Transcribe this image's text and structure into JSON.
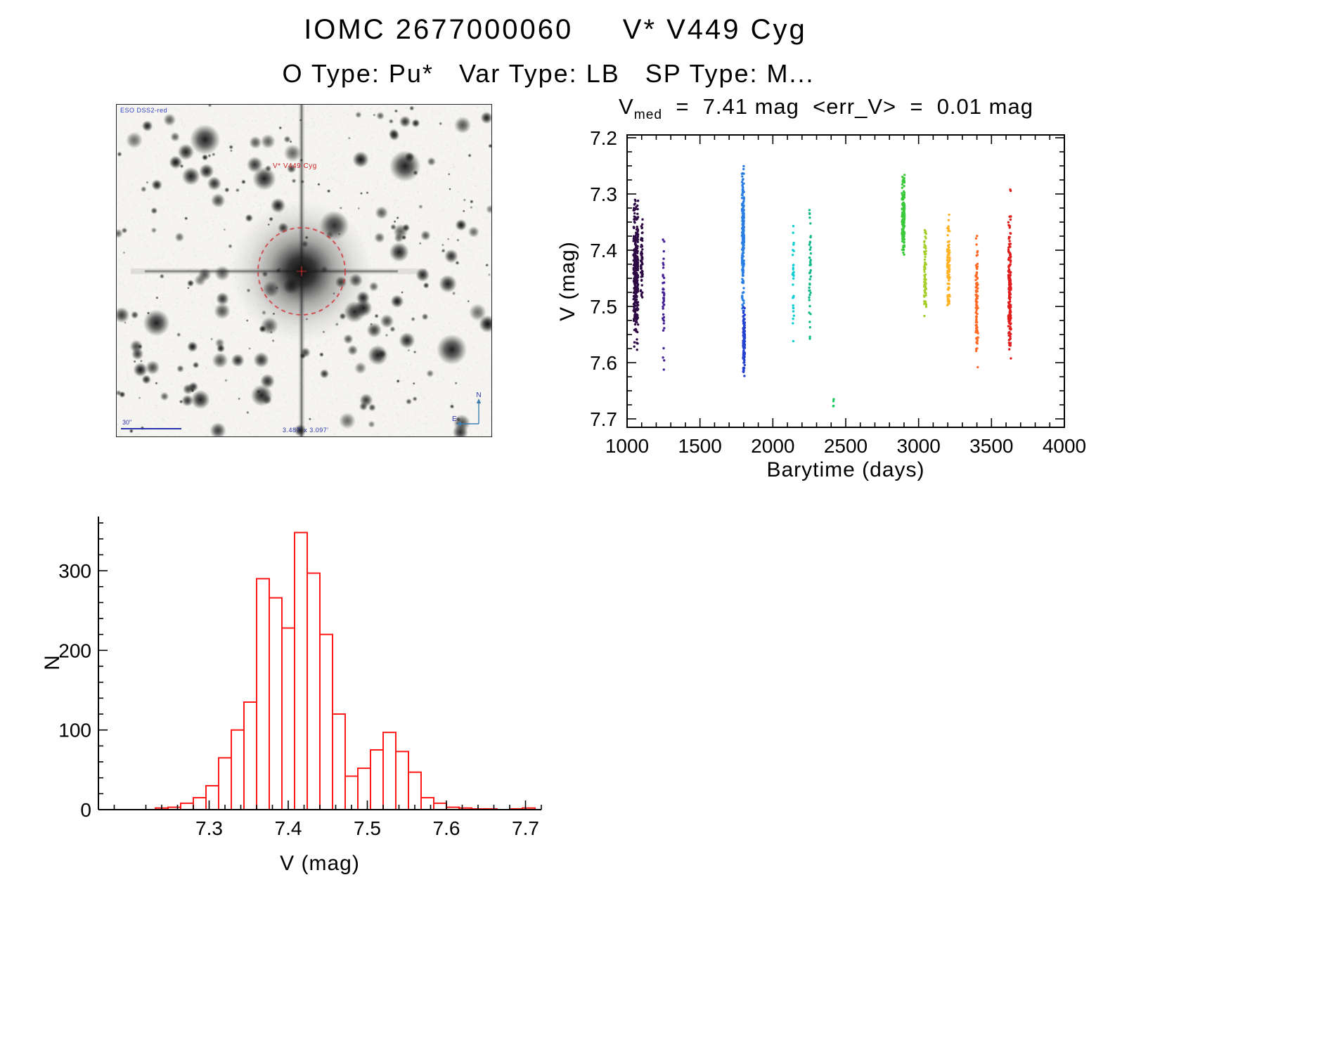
{
  "header": {
    "title": "IOMC 2677000060     V* V449 Cyg",
    "subtitle": "O Type: Pu*   Var Type: LB   SP Type: M..."
  },
  "finder": {
    "survey_label": "ESO DSS2-red",
    "target_label": "V* V449 Cyg",
    "scale_bar_label": "30\"",
    "field_size_label": "3.487' x 3.097'",
    "compass": {
      "north": "N",
      "east": "E"
    }
  },
  "chart_data": [
    {
      "id": "lightcurve",
      "type": "scatter",
      "title": {
        "prefix": "V",
        "sub": "med",
        "rest": "  =  7.41 mag  <err_V>  =  0.01 mag"
      },
      "xlabel": "Barytime (days)",
      "ylabel": "V (mag)",
      "xlim": [
        1000,
        4000
      ],
      "ylim": [
        7.195,
        7.715
      ],
      "y_reversed": true,
      "xticks": [
        1000,
        1500,
        2000,
        2500,
        3000,
        3500,
        4000
      ],
      "yticks": [
        7.2,
        7.3,
        7.4,
        7.5,
        7.6,
        7.7
      ],
      "x_minor_step": 100,
      "y_minor_step": 0.025,
      "marker_radius": 1.7,
      "clusters": [
        {
          "x": 1060,
          "x_spread": 16,
          "n": 300,
          "y_min": 7.3,
          "y_max": 7.58,
          "color": "#2e0a44"
        },
        {
          "x": 1100,
          "x_spread": 7,
          "n": 60,
          "y_min": 7.33,
          "y_max": 7.5,
          "color": "#2e0a44"
        },
        {
          "x": 1250,
          "x_spread": 5,
          "n": 40,
          "y_min": 7.33,
          "y_max": 7.63,
          "color": "#472296"
        },
        {
          "x": 1795,
          "x_spread": 7,
          "n": 200,
          "y_min": 7.23,
          "y_max": 7.52,
          "color": "#2b7fe3"
        },
        {
          "x": 1802,
          "x_spread": 6,
          "n": 130,
          "y_min": 7.5,
          "y_max": 7.63,
          "color": "#2440cf"
        },
        {
          "x": 2140,
          "x_spread": 5,
          "n": 30,
          "y_min": 7.32,
          "y_max": 7.57,
          "color": "#0ccfd4"
        },
        {
          "x": 2255,
          "x_spread": 6,
          "n": 40,
          "y_min": 7.28,
          "y_max": 7.58,
          "color": "#12b98a"
        },
        {
          "x": 2415,
          "x_spread": 3,
          "n": 4,
          "y_min": 7.66,
          "y_max": 7.69,
          "color": "#19c95c"
        },
        {
          "x": 2895,
          "x_spread": 9,
          "n": 160,
          "y_min": 7.265,
          "y_max": 7.415,
          "color": "#3bc93b"
        },
        {
          "x": 3045,
          "x_spread": 7,
          "n": 70,
          "y_min": 7.355,
          "y_max": 7.525,
          "color": "#a6cf2c"
        },
        {
          "x": 3205,
          "x_spread": 9,
          "n": 90,
          "y_min": 7.335,
          "y_max": 7.515,
          "color": "#ffb224"
        },
        {
          "x": 3400,
          "x_spread": 8,
          "n": 95,
          "y_min": 7.37,
          "y_max": 7.61,
          "color": "#ff6a26"
        },
        {
          "x": 3625,
          "x_spread": 9,
          "n": 170,
          "y_min": 7.335,
          "y_max": 7.6,
          "color": "#e01e1e"
        },
        {
          "x": 3630,
          "x_spread": 2,
          "n": 2,
          "y_min": 7.29,
          "y_max": 7.3,
          "color": "#e01e1e"
        }
      ]
    },
    {
      "id": "histogram",
      "type": "bar",
      "xlabel": "V (mag)",
      "ylabel": "N",
      "xlim": [
        7.16,
        7.72
      ],
      "ylim": [
        0,
        368
      ],
      "xticks": [
        7.3,
        7.4,
        7.5,
        7.6,
        7.7
      ],
      "yticks": [
        0,
        100,
        200,
        300
      ],
      "x_minor_step": 0.02,
      "y_minor_step": 20,
      "bin_start": 7.232,
      "bin_width": 0.016,
      "values": [
        2,
        3,
        8,
        15,
        30,
        65,
        100,
        135,
        290,
        266,
        228,
        348,
        297,
        220,
        120,
        42,
        52,
        75,
        97,
        73,
        47,
        15,
        8,
        3,
        2,
        1,
        1,
        0,
        1,
        2
      ],
      "bar_color": "#ff1a1a",
      "bar_fill": "#ffffff"
    }
  ]
}
